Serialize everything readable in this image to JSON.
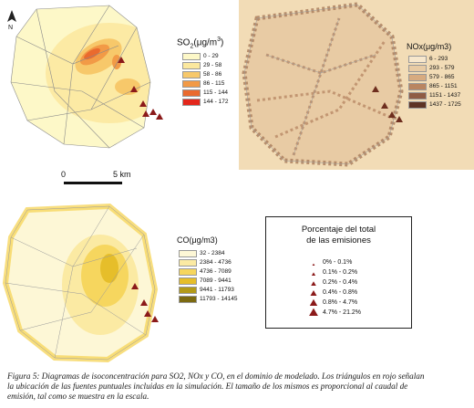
{
  "maps": {
    "so2": {
      "unit_label": "SO2(μg/m3)",
      "classes": [
        {
          "label": "0 - 29",
          "color": "#fdf8c8"
        },
        {
          "label": "29 - 58",
          "color": "#fbe89e"
        },
        {
          "label": "58 - 86",
          "color": "#f7c86a"
        },
        {
          "label": "86 - 115",
          "color": "#f29a46"
        },
        {
          "label": "115 - 144",
          "color": "#ea6a2e"
        },
        {
          "label": "144 - 172",
          "color": "#e3261b"
        }
      ]
    },
    "nox": {
      "unit_label": "NOx(μg/m3)",
      "classes": [
        {
          "label": "6 - 293",
          "color": "#f7e7cc"
        },
        {
          "label": "293 - 579",
          "color": "#e8cba4"
        },
        {
          "label": "579 - 865",
          "color": "#d7ab80"
        },
        {
          "label": "865 - 1151",
          "color": "#b98561"
        },
        {
          "label": "1151 - 1437",
          "color": "#8f5c45"
        },
        {
          "label": "1437 - 1725",
          "color": "#5e3324"
        }
      ]
    },
    "co": {
      "unit_label": "CO(μg/m3)",
      "classes": [
        {
          "label": "32 - 2384",
          "color": "#fdf7d6"
        },
        {
          "label": "2384 - 4736",
          "color": "#fbeaa3"
        },
        {
          "label": "4736 - 7089",
          "color": "#f6d65e"
        },
        {
          "label": "7089 - 9441",
          "color": "#e6be2a"
        },
        {
          "label": "9441 - 11793",
          "color": "#b39a18"
        },
        {
          "label": "11793 - 14145",
          "color": "#7c6a10"
        }
      ]
    }
  },
  "north_label": "N",
  "scale": {
    "start": "0",
    "end": "5 km"
  },
  "emissions_legend": {
    "title_line1": "Porcentaje del total",
    "title_line2": "de las emisiones",
    "rows": [
      {
        "label": "0% - 0.1%"
      },
      {
        "label": "0.1% - 0.2%"
      },
      {
        "label": "0.2% - 0.4%"
      },
      {
        "label": "0.4% - 0.8%"
      },
      {
        "label": "0.8% - 4.7%"
      },
      {
        "label": "4.7% - 21.2%"
      }
    ],
    "marker_color": "#8b1a1a"
  },
  "caption": {
    "line1": "Figura 5: Diagramas de isoconcentración para SO2, NOx y CO, en el dominio de modelado. Los triángulos en rojo señalan",
    "line2": "la ubicación de las fuentes puntuales incluidas en la simulación. El tamaño de los mismos es proporcional al caudal de",
    "line3": "emisión, tal como se muestra en la escala."
  }
}
